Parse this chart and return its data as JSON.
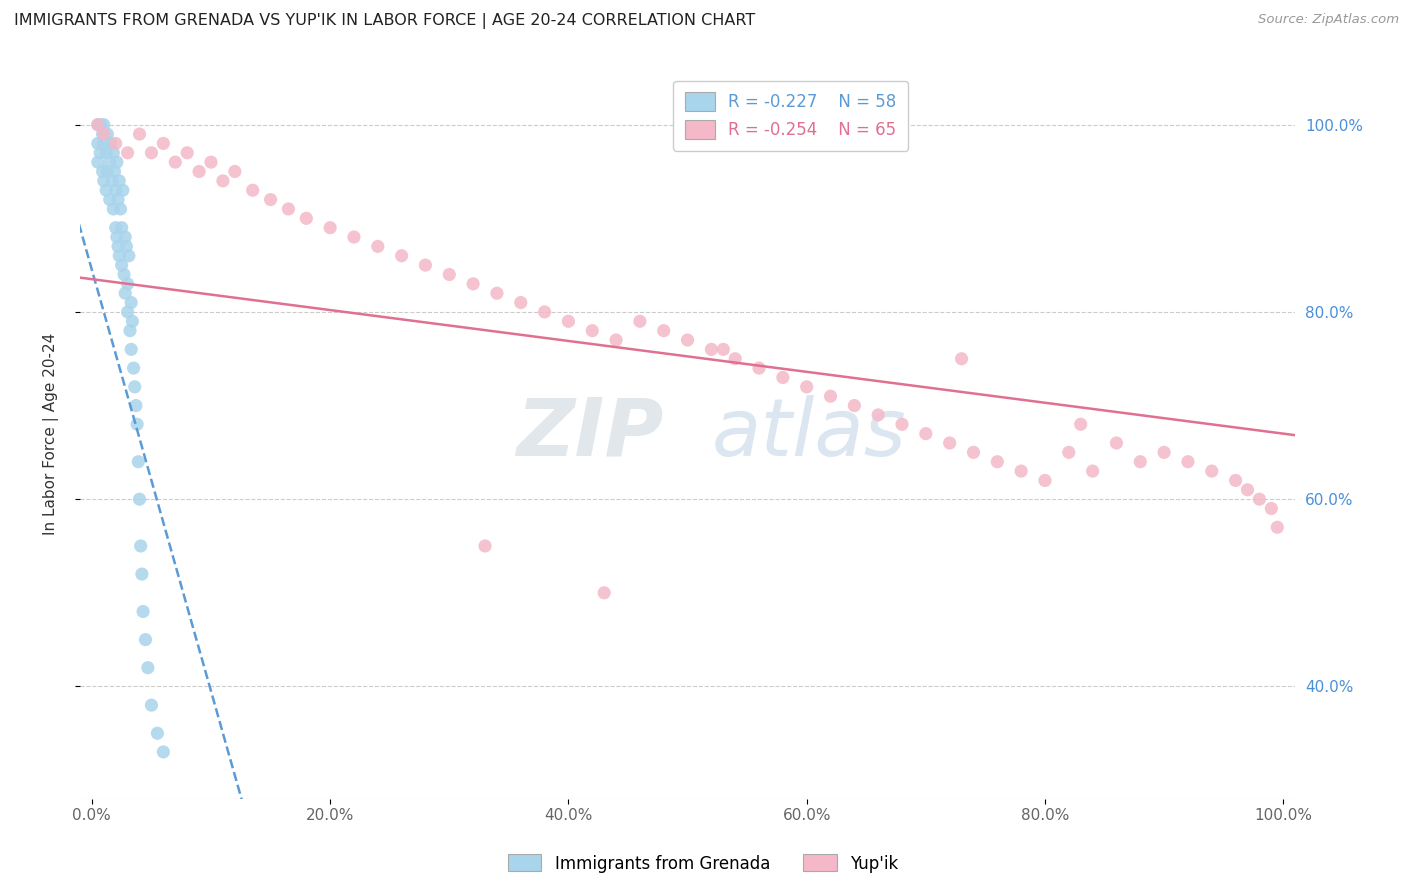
{
  "title": "IMMIGRANTS FROM GRENADA VS YUP'IK IN LABOR FORCE | AGE 20-24 CORRELATION CHART",
  "source": "Source: ZipAtlas.com",
  "ylabel": "In Labor Force | Age 20-24",
  "legend_labels": [
    "Immigrants from Grenada",
    "Yup'ik"
  ],
  "r_grenada": -0.227,
  "n_grenada": 58,
  "r_yupik": -0.254,
  "n_yupik": 65,
  "color_grenada": "#a8d4ec",
  "color_yupik": "#f4b8c8",
  "trendline_color_grenada": "#5b9bd5",
  "trendline_color_yupik": "#e07090",
  "watermark_zip": "ZIP",
  "watermark_atlas": "atlas",
  "background_color": "#ffffff",
  "xlim": [
    -0.01,
    1.01
  ],
  "ylim": [
    0.28,
    1.06
  ],
  "x_ticks": [
    0.0,
    0.2,
    0.4,
    0.6,
    0.8,
    1.0
  ],
  "x_tick_labels": [
    "0.0%",
    "20.0%",
    "40.0%",
    "60.0%",
    "80.0%",
    "100.0%"
  ],
  "y_ticks": [
    0.4,
    0.6,
    0.8,
    1.0
  ],
  "y_tick_labels": [
    "40.0%",
    "60.0%",
    "80.0%",
    "100.0%"
  ],
  "grenada_x": [
    0.005,
    0.005,
    0.005,
    0.007,
    0.007,
    0.009,
    0.009,
    0.01,
    0.01,
    0.01,
    0.012,
    0.012,
    0.013,
    0.013,
    0.015,
    0.015,
    0.016,
    0.017,
    0.018,
    0.018,
    0.019,
    0.02,
    0.02,
    0.021,
    0.021,
    0.022,
    0.022,
    0.023,
    0.023,
    0.024,
    0.025,
    0.025,
    0.026,
    0.027,
    0.028,
    0.028,
    0.029,
    0.03,
    0.03,
    0.031,
    0.032,
    0.033,
    0.033,
    0.034,
    0.035,
    0.036,
    0.037,
    0.038,
    0.039,
    0.04,
    0.041,
    0.042,
    0.043,
    0.045,
    0.047,
    0.05,
    0.055,
    0.06
  ],
  "grenada_y": [
    1.0,
    0.98,
    0.96,
    1.0,
    0.97,
    0.99,
    0.95,
    1.0,
    0.98,
    0.94,
    0.97,
    0.93,
    0.99,
    0.95,
    0.96,
    0.92,
    0.98,
    0.94,
    0.97,
    0.91,
    0.95,
    0.93,
    0.89,
    0.96,
    0.88,
    0.92,
    0.87,
    0.94,
    0.86,
    0.91,
    0.89,
    0.85,
    0.93,
    0.84,
    0.88,
    0.82,
    0.87,
    0.83,
    0.8,
    0.86,
    0.78,
    0.81,
    0.76,
    0.79,
    0.74,
    0.72,
    0.7,
    0.68,
    0.64,
    0.6,
    0.55,
    0.52,
    0.48,
    0.45,
    0.42,
    0.38,
    0.35,
    0.33
  ],
  "yupik_x": [
    0.005,
    0.01,
    0.02,
    0.03,
    0.04,
    0.05,
    0.06,
    0.07,
    0.08,
    0.09,
    0.1,
    0.11,
    0.12,
    0.135,
    0.15,
    0.165,
    0.18,
    0.2,
    0.22,
    0.24,
    0.26,
    0.28,
    0.3,
    0.32,
    0.34,
    0.36,
    0.38,
    0.4,
    0.42,
    0.44,
    0.46,
    0.48,
    0.5,
    0.52,
    0.54,
    0.56,
    0.58,
    0.6,
    0.62,
    0.64,
    0.66,
    0.68,
    0.7,
    0.72,
    0.74,
    0.76,
    0.78,
    0.8,
    0.82,
    0.84,
    0.86,
    0.88,
    0.9,
    0.92,
    0.94,
    0.96,
    0.97,
    0.98,
    0.99,
    0.995,
    0.43,
    0.33,
    0.53,
    0.73,
    0.83
  ],
  "yupik_y": [
    1.0,
    0.99,
    0.98,
    0.97,
    0.99,
    0.97,
    0.98,
    0.96,
    0.97,
    0.95,
    0.96,
    0.94,
    0.95,
    0.93,
    0.92,
    0.91,
    0.9,
    0.89,
    0.88,
    0.87,
    0.86,
    0.85,
    0.84,
    0.83,
    0.82,
    0.81,
    0.8,
    0.79,
    0.78,
    0.77,
    0.79,
    0.78,
    0.77,
    0.76,
    0.75,
    0.74,
    0.73,
    0.72,
    0.71,
    0.7,
    0.69,
    0.68,
    0.67,
    0.66,
    0.65,
    0.64,
    0.63,
    0.62,
    0.65,
    0.63,
    0.66,
    0.64,
    0.65,
    0.64,
    0.63,
    0.62,
    0.61,
    0.6,
    0.59,
    0.57,
    0.5,
    0.55,
    0.76,
    0.75,
    0.68
  ]
}
